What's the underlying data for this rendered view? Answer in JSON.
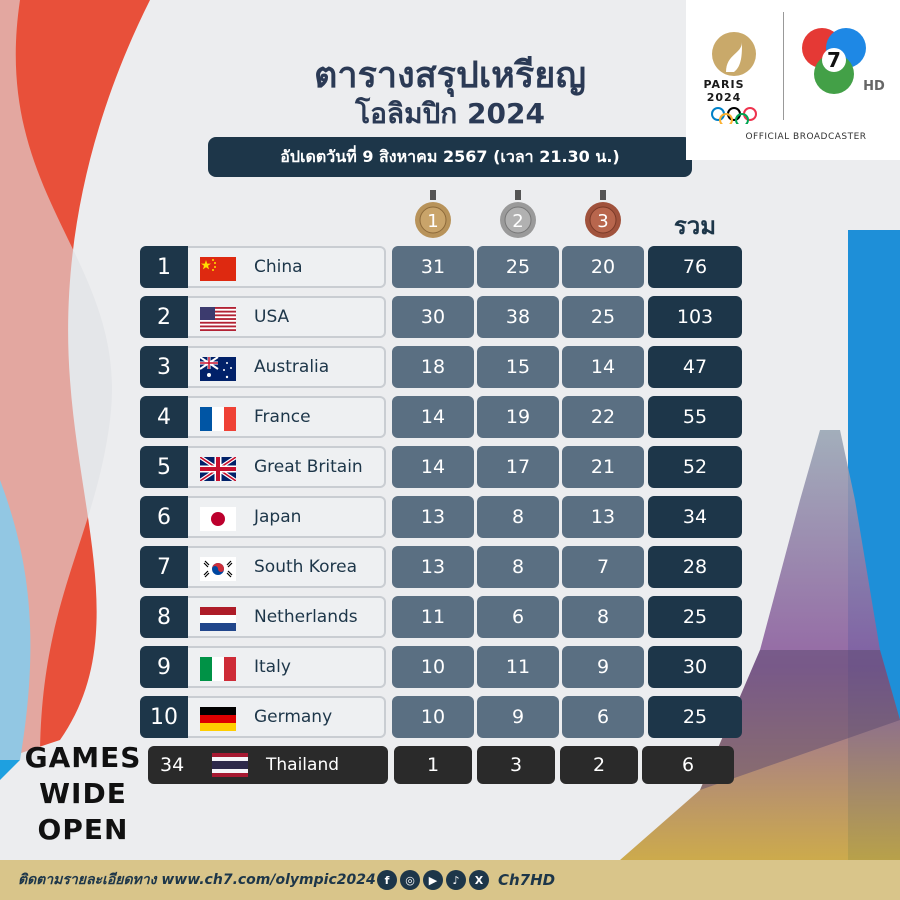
{
  "header": {
    "title": "ตารางสรุปเหรียญ",
    "subtitle": "โอลิมปิก 2024",
    "update": "อัปเดตวันที่ 9 สิงหาคม 2567  (เวลา 21.30 น.)"
  },
  "logos": {
    "paris": "PARIS 2024",
    "broadcaster": "OFFICIAL BROADCASTER",
    "ch7_number": "7",
    "hd": "HD"
  },
  "medals": {
    "gold": "1",
    "silver": "2",
    "bronze": "3",
    "total_label": "รวม"
  },
  "table": [
    {
      "rank": "1",
      "country": "China",
      "flag": "china-flag-icon",
      "gold": "31",
      "silver": "25",
      "bronze": "20",
      "total": "76"
    },
    {
      "rank": "2",
      "country": "USA",
      "flag": "usa-flag-icon",
      "gold": "30",
      "silver": "38",
      "bronze": "25",
      "total": "103"
    },
    {
      "rank": "3",
      "country": "Australia",
      "flag": "australia-flag-icon",
      "gold": "18",
      "silver": "15",
      "bronze": "14",
      "total": "47"
    },
    {
      "rank": "4",
      "country": "France",
      "flag": "france-flag-icon",
      "gold": "14",
      "silver": "19",
      "bronze": "22",
      "total": "55"
    },
    {
      "rank": "5",
      "country": "Great Britain",
      "flag": "great-britain-flag-icon",
      "gold": "14",
      "silver": "17",
      "bronze": "21",
      "total": "52"
    },
    {
      "rank": "6",
      "country": "Japan",
      "flag": "japan-flag-icon",
      "gold": "13",
      "silver": "8",
      "bronze": "13",
      "total": "34"
    },
    {
      "rank": "7",
      "country": "South Korea",
      "flag": "south-korea-flag-icon",
      "gold": "13",
      "silver": "8",
      "bronze": "7",
      "total": "28"
    },
    {
      "rank": "8",
      "country": "Netherlands",
      "flag": "netherlands-flag-icon",
      "gold": "11",
      "silver": "6",
      "bronze": "8",
      "total": "25"
    },
    {
      "rank": "9",
      "country": "Italy",
      "flag": "italy-flag-icon",
      "gold": "10",
      "silver": "11",
      "bronze": "9",
      "total": "30"
    },
    {
      "rank": "10",
      "country": "Germany",
      "flag": "germany-flag-icon",
      "gold": "10",
      "silver": "9",
      "bronze": "6",
      "total": "25"
    }
  ],
  "thailand": {
    "rank": "34",
    "country": "Thailand",
    "flag": "thailand-flag-icon",
    "gold": "1",
    "silver": "3",
    "bronze": "2",
    "total": "6"
  },
  "slogan": [
    "GAMES",
    "WIDE",
    "OPEN"
  ],
  "footer": {
    "text": "ติดตามรายละเอียดทาง www.ch7.com/olympic2024",
    "social_icons": [
      "facebook-icon",
      "instagram-icon",
      "youtube-icon",
      "tiktok-icon",
      "x-icon"
    ],
    "handle": "Ch7HD"
  },
  "colors": {
    "navy": "#1d3649",
    "cell": "#5a6f82",
    "gold": "#b8935a",
    "silver": "#9a9a9a",
    "bronze": "#a0523c"
  }
}
